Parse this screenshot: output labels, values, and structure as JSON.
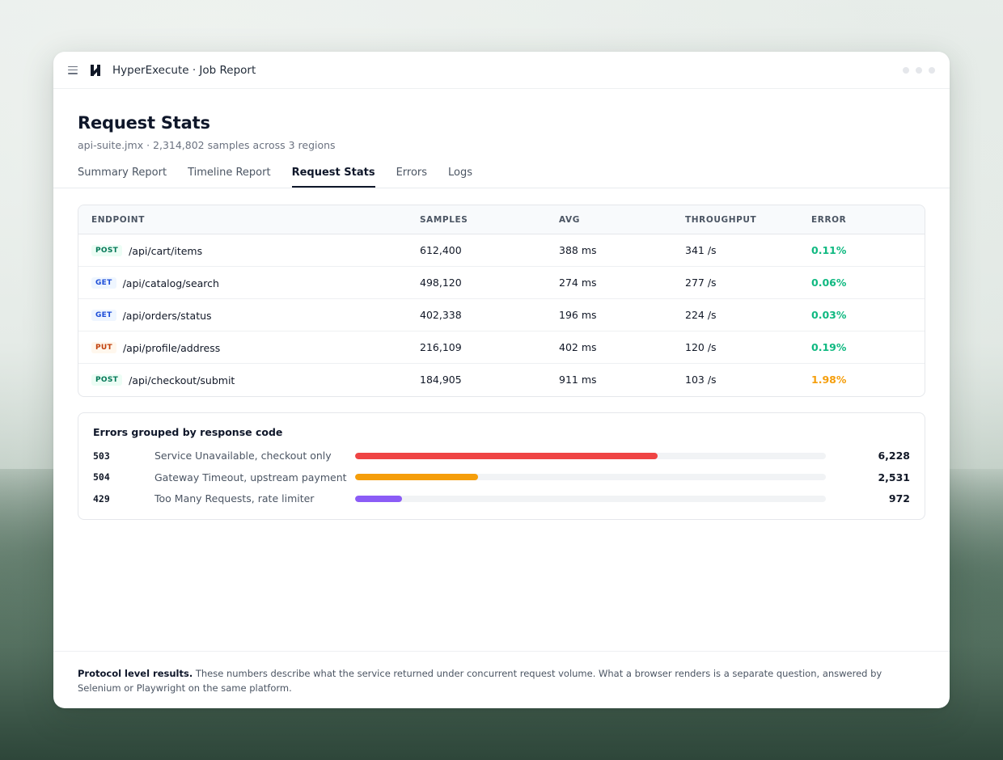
{
  "window": {
    "title": "HyperExecute · Job Report"
  },
  "header": {
    "title": "Request Stats",
    "subtitle": "api-suite.jmx · 2,314,802 samples across 3 regions"
  },
  "tabs": [
    {
      "label": "Summary Report",
      "active": false
    },
    {
      "label": "Timeline Report",
      "active": false
    },
    {
      "label": "Request Stats",
      "active": true
    },
    {
      "label": "Errors",
      "active": false
    },
    {
      "label": "Logs",
      "active": false
    }
  ],
  "table": {
    "columns": [
      "ENDPOINT",
      "SAMPLES",
      "AVG",
      "THROUGHPUT",
      "ERROR"
    ],
    "rows": [
      {
        "method": "POST",
        "path": "/api/cart/items",
        "samples": "612,400",
        "avg": "388 ms",
        "throughput": "341 /s",
        "error": "0.11%",
        "error_level": "ok"
      },
      {
        "method": "GET",
        "path": "/api/catalog/search",
        "samples": "498,120",
        "avg": "274 ms",
        "throughput": "277 /s",
        "error": "0.06%",
        "error_level": "ok"
      },
      {
        "method": "GET",
        "path": "/api/orders/status",
        "samples": "402,338",
        "avg": "196 ms",
        "throughput": "224 /s",
        "error": "0.03%",
        "error_level": "ok"
      },
      {
        "method": "PUT",
        "path": "/api/profile/address",
        "samples": "216,109",
        "avg": "402 ms",
        "throughput": "120 /s",
        "error": "0.19%",
        "error_level": "ok"
      },
      {
        "method": "POST",
        "path": "/api/checkout/submit",
        "samples": "184,905",
        "avg": "911 ms",
        "throughput": "103 /s",
        "error": "1.98%",
        "error_level": "warn"
      }
    ]
  },
  "errors": {
    "title": "Errors grouped by response code",
    "items": [
      {
        "code": "503",
        "description": "Service Unavailable, checkout only",
        "count": "6,228",
        "value": 6228,
        "color": "#ef4444"
      },
      {
        "code": "504",
        "description": "Gateway Timeout, upstream payment",
        "count": "2,531",
        "value": 2531,
        "color": "#f59e0b"
      },
      {
        "code": "429",
        "description": "Too Many Requests, rate limiter",
        "count": "972",
        "value": 972,
        "color": "#8b5cf6"
      }
    ],
    "scale_max": 9700
  },
  "footer": {
    "lead": "Protocol level results.",
    "text": " These numbers describe what the service returned under concurrent request volume. What a browser renders is a separate question, answered by Selenium or Playwright on the same platform."
  }
}
